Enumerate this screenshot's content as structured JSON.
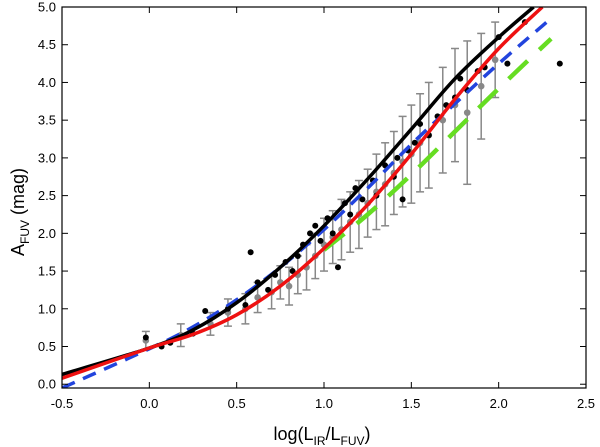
{
  "chart_data": {
    "type": "scatter",
    "title": "",
    "xlabel": {
      "main": "log(L",
      "sub1": "IR",
      "mid": "/L",
      "sub2": "FUV",
      "end": ")"
    },
    "ylabel": {
      "main": "A",
      "sub": "FUV",
      "end": " (mag)"
    },
    "xlim": [
      -0.5,
      2.5
    ],
    "ylim": [
      -0.05,
      5.0
    ],
    "xticks": [
      -0.5,
      0.0,
      0.5,
      1.0,
      1.5,
      2.0,
      2.5
    ],
    "xtick_labels": [
      "-0.5",
      "0.0",
      "0.5",
      "1.0",
      "1.5",
      "2.0",
      "2.5"
    ],
    "yticks": [
      0.0,
      0.5,
      1.0,
      1.5,
      2.0,
      2.5,
      3.0,
      3.5,
      4.0,
      4.5,
      5.0
    ],
    "ytick_labels": [
      "0.0",
      "0.5",
      "1.0",
      "1.5",
      "2.0",
      "2.5",
      "3.0",
      "3.5",
      "4.0",
      "4.5",
      "5.0"
    ],
    "grid": false,
    "legend": "none",
    "colors": {
      "black_points": "#000000",
      "gray_points": "#888888",
      "black_curve": "#000000",
      "red_curve": "#ee1111",
      "blue_curve": "#2244dd",
      "green_curve": "#66dd22"
    },
    "series": [
      {
        "kind": "points",
        "color": "black",
        "points": [
          [
            -0.02,
            0.62
          ],
          [
            0.07,
            0.5
          ],
          [
            0.12,
            0.55
          ],
          [
            0.25,
            0.67
          ],
          [
            0.32,
            0.97
          ],
          [
            0.35,
            0.87
          ],
          [
            0.45,
            1.0
          ],
          [
            0.55,
            1.05
          ],
          [
            0.58,
            1.75
          ],
          [
            0.62,
            1.35
          ],
          [
            0.68,
            1.25
          ],
          [
            0.72,
            1.45
          ],
          [
            0.78,
            1.62
          ],
          [
            0.82,
            1.5
          ],
          [
            0.85,
            1.7
          ],
          [
            0.88,
            1.85
          ],
          [
            0.92,
            2.0
          ],
          [
            0.95,
            2.1
          ],
          [
            0.98,
            1.9
          ],
          [
            1.02,
            2.2
          ],
          [
            1.05,
            2.0
          ],
          [
            1.08,
            1.55
          ],
          [
            1.12,
            2.4
          ],
          [
            1.15,
            2.25
          ],
          [
            1.18,
            2.6
          ],
          [
            1.22,
            2.45
          ],
          [
            1.28,
            2.7
          ],
          [
            1.3,
            2.5
          ],
          [
            1.35,
            2.9
          ],
          [
            1.4,
            2.75
          ],
          [
            1.42,
            3.0
          ],
          [
            1.45,
            2.45
          ],
          [
            1.48,
            3.1
          ],
          [
            1.52,
            3.2
          ],
          [
            1.55,
            3.45
          ],
          [
            1.6,
            3.3
          ],
          [
            1.65,
            3.55
          ],
          [
            1.7,
            3.7
          ],
          [
            1.75,
            3.8
          ],
          [
            1.78,
            4.05
          ],
          [
            1.82,
            3.9
          ],
          [
            1.88,
            4.15
          ],
          [
            1.92,
            4.2
          ],
          [
            2.0,
            4.6
          ],
          [
            2.05,
            4.25
          ],
          [
            2.15,
            4.8
          ],
          [
            2.35,
            4.25
          ]
        ]
      },
      {
        "kind": "points_with_errors",
        "color": "gray",
        "points": [
          [
            -0.02,
            0.58,
            0.12
          ],
          [
            0.18,
            0.65,
            0.15
          ],
          [
            0.35,
            0.8,
            0.15
          ],
          [
            0.45,
            0.95,
            0.18
          ],
          [
            0.55,
            1.0,
            0.2
          ],
          [
            0.62,
            1.15,
            0.2
          ],
          [
            0.7,
            1.22,
            0.22
          ],
          [
            0.75,
            1.35,
            0.22
          ],
          [
            0.8,
            1.3,
            0.25
          ],
          [
            0.85,
            1.45,
            0.25
          ],
          [
            0.9,
            1.55,
            0.3
          ],
          [
            0.95,
            1.7,
            0.3
          ],
          [
            1.0,
            1.85,
            0.35
          ],
          [
            1.05,
            1.95,
            0.35
          ],
          [
            1.1,
            2.05,
            0.4
          ],
          [
            1.15,
            2.15,
            0.4
          ],
          [
            1.2,
            2.25,
            0.45
          ],
          [
            1.25,
            2.4,
            0.45
          ],
          [
            1.3,
            2.55,
            0.5
          ],
          [
            1.35,
            2.65,
            0.55
          ],
          [
            1.4,
            2.8,
            0.55
          ],
          [
            1.45,
            2.95,
            0.6
          ],
          [
            1.5,
            3.05,
            0.65
          ],
          [
            1.55,
            3.2,
            0.65
          ],
          [
            1.6,
            3.3,
            0.7
          ],
          [
            1.68,
            3.5,
            0.7
          ],
          [
            1.75,
            3.7,
            0.75
          ],
          [
            1.82,
            3.6,
            0.95
          ],
          [
            1.9,
            3.95,
            0.7
          ],
          [
            1.98,
            4.3,
            0.5
          ]
        ]
      },
      {
        "kind": "curve",
        "color": "black",
        "style": "solid",
        "points": [
          [
            -0.5,
            0.13
          ],
          [
            0.0,
            0.48
          ],
          [
            0.25,
            0.72
          ],
          [
            0.5,
            1.08
          ],
          [
            0.75,
            1.55
          ],
          [
            1.0,
            2.1
          ],
          [
            1.25,
            2.72
          ],
          [
            1.5,
            3.38
          ],
          [
            1.75,
            4.05
          ],
          [
            2.0,
            4.6
          ],
          [
            2.2,
            5.0
          ]
        ]
      },
      {
        "kind": "curve",
        "color": "red",
        "style": "solid",
        "points": [
          [
            -0.5,
            0.08
          ],
          [
            0.0,
            0.48
          ],
          [
            0.25,
            0.66
          ],
          [
            0.5,
            0.92
          ],
          [
            0.75,
            1.3
          ],
          [
            1.0,
            1.8
          ],
          [
            1.25,
            2.38
          ],
          [
            1.5,
            3.05
          ],
          [
            1.75,
            3.78
          ],
          [
            2.0,
            4.45
          ],
          [
            2.25,
            5.0
          ]
        ]
      },
      {
        "kind": "curve",
        "color": "blue",
        "style": "dashed",
        "points": [
          [
            -0.5,
            -0.05
          ],
          [
            0.0,
            0.47
          ],
          [
            0.25,
            0.76
          ],
          [
            0.5,
            1.12
          ],
          [
            0.75,
            1.55
          ],
          [
            1.0,
            2.05
          ],
          [
            1.25,
            2.6
          ],
          [
            1.5,
            3.18
          ],
          [
            1.75,
            3.72
          ],
          [
            2.0,
            4.25
          ],
          [
            2.25,
            4.75
          ],
          [
            2.3,
            4.85
          ]
        ]
      },
      {
        "kind": "curve",
        "color": "green",
        "style": "dashed",
        "points": [
          [
            1.0,
            1.78
          ],
          [
            1.25,
            2.25
          ],
          [
            1.5,
            2.78
          ],
          [
            1.75,
            3.35
          ],
          [
            2.0,
            3.92
          ],
          [
            2.3,
            4.58
          ]
        ]
      }
    ]
  }
}
